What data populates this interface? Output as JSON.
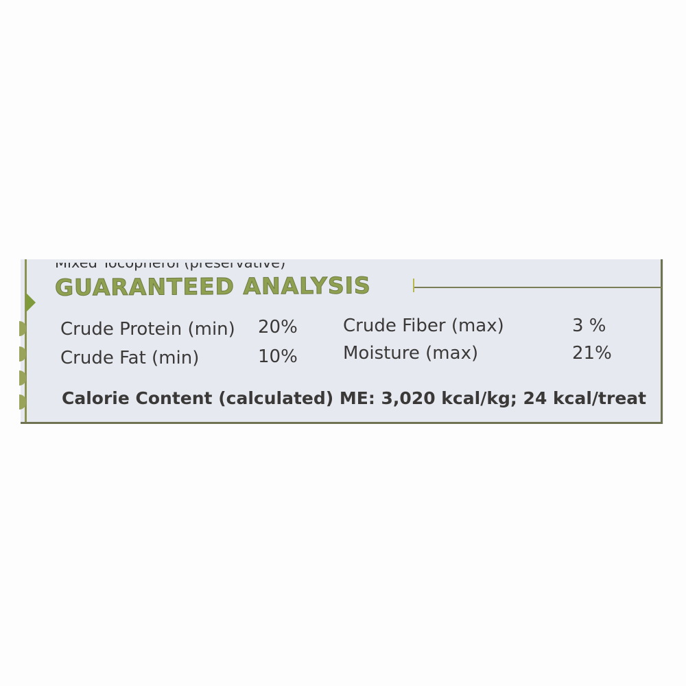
{
  "label": {
    "cut_off_line": "Mixed Tocopherol (preservative)",
    "heading": "GUARANTEED ANALYSIS",
    "rows": [
      {
        "name": "Crude Protein (min)",
        "value": "20%"
      },
      {
        "name": "Crude Fat (min)",
        "value": "10%"
      },
      {
        "name": "Crude Fiber (max)",
        "value": "3 %"
      },
      {
        "name": "Moisture (max)",
        "value": "21%"
      }
    ],
    "calorie": "Calorie Content (calculated) ME: 3,020 kcal/kg; 24 kcal/treat"
  },
  "colors": {
    "heading": "#8fa050",
    "text": "#3b3838",
    "panel": "#e6eaf0"
  }
}
